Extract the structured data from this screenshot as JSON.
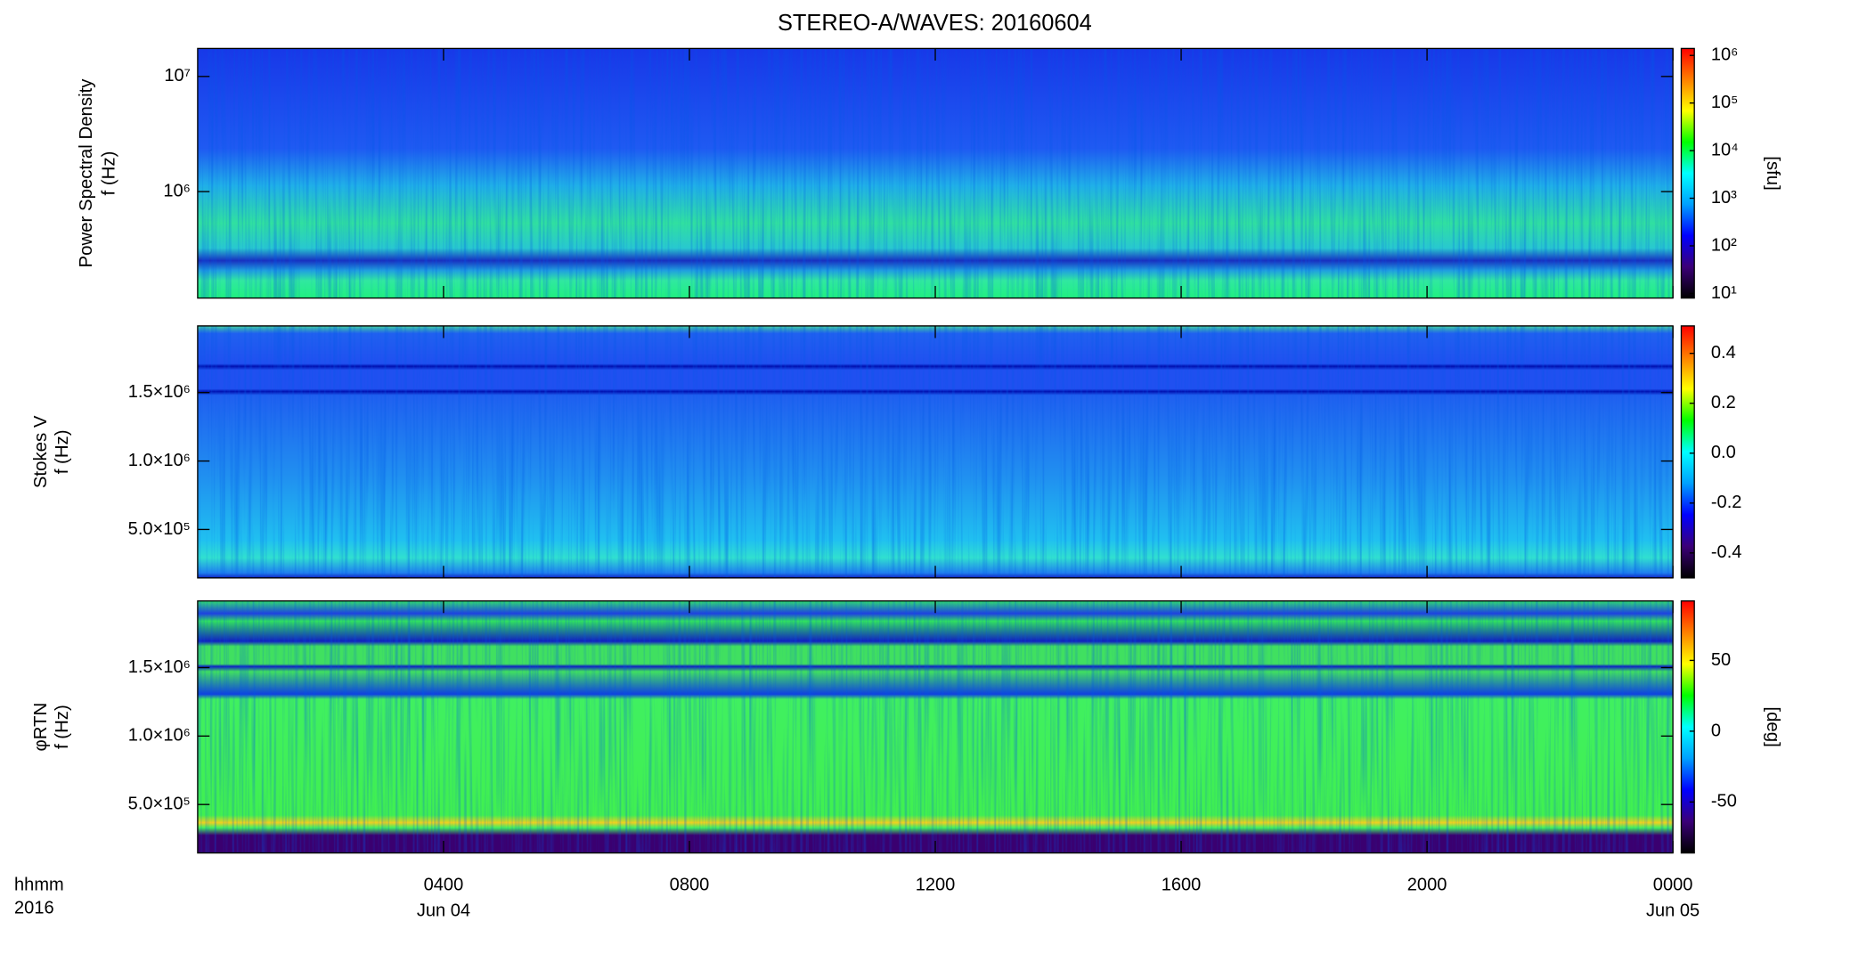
{
  "chart_data": {
    "type": "spectrogram",
    "title": "STEREO-A/WAVES: 20160604",
    "xlim": [
      0,
      24
    ],
    "xticks": [
      {
        "value": 4,
        "label": "0400"
      },
      {
        "value": 8,
        "label": "0800"
      },
      {
        "value": 12,
        "label": "1200"
      },
      {
        "value": 16,
        "label": "1600"
      },
      {
        "value": 20,
        "label": "2000"
      },
      {
        "value": 24,
        "label": "0000"
      }
    ],
    "x_sublabels": [
      {
        "value": 4,
        "label": "Jun 04"
      },
      {
        "value": 24,
        "label": "Jun 05"
      }
    ],
    "x_row_titles": [
      "hhmm",
      "2016"
    ],
    "colormap": [
      "#000000",
      "#3b0078",
      "#0000ff",
      "#00a0ff",
      "#00ffff",
      "#00ff00",
      "#ffff00",
      "#ff8000",
      "#ff0000"
    ],
    "panels": [
      {
        "ylabel": [
          "Power Spectral Density",
          "f (Hz)"
        ],
        "ylog": true,
        "ylim": [
          119000,
          17500000
        ],
        "yticks": [
          {
            "value": 1000000,
            "label": "10⁶"
          },
          {
            "value": 10000000,
            "label": "10⁷"
          }
        ],
        "clog": true,
        "clim": [
          8,
          1400000
        ],
        "cticks": [
          {
            "value": 10,
            "label": "10¹"
          },
          {
            "value": 100,
            "label": "10²"
          },
          {
            "value": 1000,
            "label": "10³"
          },
          {
            "value": 10000,
            "label": "10⁴"
          },
          {
            "value": 100000,
            "label": "10⁵"
          },
          {
            "value": 1000000,
            "label": "10⁶"
          }
        ],
        "clabel": "[sfu]"
      },
      {
        "ylabel": [
          "Stokes V",
          "f (Hz)"
        ],
        "ylog": false,
        "ylim": [
          146000,
          1987000
        ],
        "yticks": [
          {
            "value": 500000,
            "label": "5.0×10⁵"
          },
          {
            "value": 1000000,
            "label": "1.0×10⁶"
          },
          {
            "value": 1500000,
            "label": "1.5×10⁶"
          }
        ],
        "clog": false,
        "clim": [
          -0.5,
          0.51
        ],
        "cticks": [
          -0.4,
          -0.2,
          {
            "value": 0,
            "label": "0.0"
          },
          0.2,
          0.4
        ]
      },
      {
        "ylabel": [
          "φRTN",
          "f (Hz)"
        ],
        "ylog": false,
        "ylim": [
          146000,
          1987000
        ],
        "yticks": [
          {
            "value": 500000,
            "label": "5.0×10⁵"
          },
          {
            "value": 1000000,
            "label": "1.0×10⁶"
          },
          {
            "value": 1500000,
            "label": "1.5×10⁶"
          }
        ],
        "clog": false,
        "clim": [
          -86,
          92
        ],
        "cticks": [
          -50,
          0,
          50
        ],
        "clabel": "[deg]"
      }
    ]
  }
}
